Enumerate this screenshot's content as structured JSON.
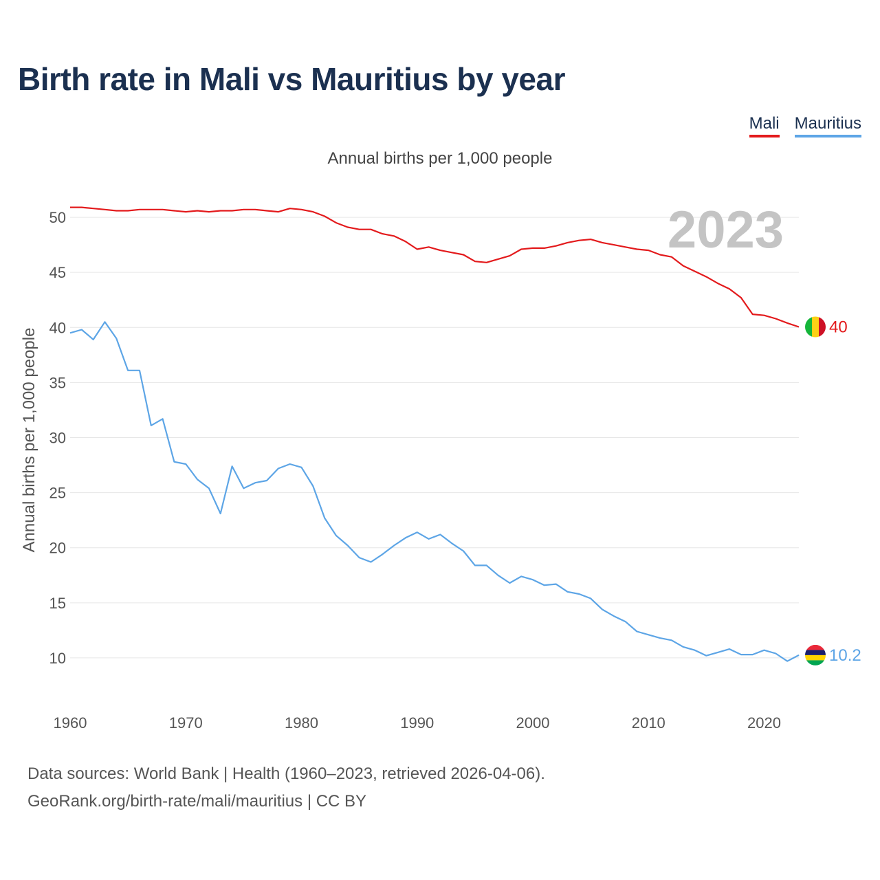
{
  "title": "Birth rate in Mali vs Mauritius by year",
  "legend": [
    "Mali",
    "Mauritius"
  ],
  "subtitle": "Annual births per 1,000 people",
  "source_line1": "Data sources: World Bank | Health (1960–2023, retrieved 2026-04-06).",
  "source_line2": "GeoRank.org/birth-rate/mali/mauritius | CC BY",
  "chart_data": {
    "type": "line",
    "title": "Birth rate in Mali vs Mauritius by year",
    "subtitle": "Annual births per 1,000 people",
    "xlabel": "",
    "ylabel": "Annual births per 1,000 people",
    "year_label": "2023",
    "xlim": [
      1960,
      2023
    ],
    "ylim": [
      7,
      53
    ],
    "x_ticks": [
      1960,
      1970,
      1980,
      1990,
      2000,
      2010,
      2020
    ],
    "y_ticks": [
      10,
      15,
      20,
      25,
      30,
      35,
      40,
      45,
      50
    ],
    "x": [
      1960,
      1961,
      1962,
      1963,
      1964,
      1965,
      1966,
      1967,
      1968,
      1969,
      1970,
      1971,
      1972,
      1973,
      1974,
      1975,
      1976,
      1977,
      1978,
      1979,
      1980,
      1981,
      1982,
      1983,
      1984,
      1985,
      1986,
      1987,
      1988,
      1989,
      1990,
      1991,
      1992,
      1993,
      1994,
      1995,
      1996,
      1997,
      1998,
      1999,
      2000,
      2001,
      2002,
      2003,
      2004,
      2005,
      2006,
      2007,
      2008,
      2009,
      2010,
      2011,
      2012,
      2013,
      2014,
      2015,
      2016,
      2017,
      2018,
      2019,
      2020,
      2021,
      2022,
      2023
    ],
    "series": [
      {
        "name": "Mali",
        "color": "#e31a1c",
        "end_label": "40",
        "values": [
          50.9,
          50.9,
          50.8,
          50.7,
          50.6,
          50.6,
          50.7,
          50.7,
          50.7,
          50.6,
          50.5,
          50.6,
          50.5,
          50.6,
          50.6,
          50.7,
          50.7,
          50.6,
          50.5,
          50.8,
          50.7,
          50.5,
          50.1,
          49.5,
          49.1,
          48.9,
          48.9,
          48.5,
          48.3,
          47.8,
          47.1,
          47.3,
          47.0,
          46.8,
          46.6,
          46.0,
          45.9,
          46.2,
          46.5,
          47.1,
          47.2,
          47.2,
          47.4,
          47.7,
          47.9,
          48.0,
          47.7,
          47.5,
          47.3,
          47.1,
          47.0,
          46.6,
          46.4,
          45.6,
          45.1,
          44.6,
          44.0,
          43.5,
          42.7,
          41.2,
          41.1,
          40.8,
          40.4,
          40.05
        ]
      },
      {
        "name": "Mauritius",
        "color": "#5da5e6",
        "end_label": "10.2",
        "values": [
          39.5,
          39.8,
          38.9,
          40.5,
          39.0,
          36.1,
          36.1,
          31.1,
          31.7,
          27.8,
          27.6,
          26.2,
          25.4,
          23.1,
          27.4,
          25.4,
          25.9,
          26.1,
          27.2,
          27.6,
          27.3,
          25.6,
          22.7,
          21.1,
          20.2,
          19.1,
          18.7,
          19.4,
          20.2,
          20.9,
          21.4,
          20.8,
          21.2,
          20.4,
          19.7,
          18.4,
          18.4,
          17.5,
          16.8,
          17.4,
          17.1,
          16.6,
          16.7,
          16.0,
          15.8,
          15.4,
          14.4,
          13.8,
          13.3,
          12.4,
          12.1,
          11.8,
          11.6,
          11.0,
          10.7,
          10.2,
          10.5,
          10.8,
          10.3,
          10.3,
          10.7,
          10.4,
          9.7,
          10.25
        ]
      }
    ]
  }
}
